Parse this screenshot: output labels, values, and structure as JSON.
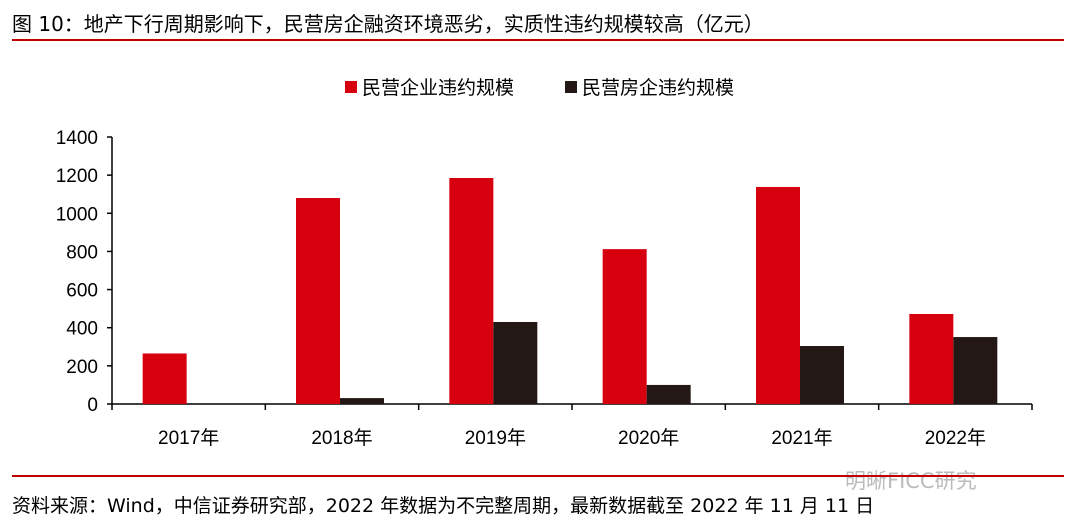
{
  "title": "图 10：地产下行周期影响下，民营房企融资环境恶劣，实质性违约规模较高（亿元）",
  "source": "资料来源：Wind，中信证券研究部，2022 年数据为不完整周期，最新数据截至 2022 年 11 月 11 日",
  "watermark": "明晰FICC研究",
  "colors": {
    "accent": "#c00000",
    "series1": "#d7000f",
    "series2": "#231815"
  },
  "chart_data": {
    "type": "bar",
    "categories": [
      "2017年",
      "2018年",
      "2019年",
      "2020年",
      "2021年",
      "2022年"
    ],
    "series": [
      {
        "name": "民营企业违约规模",
        "values": [
          265,
          1080,
          1185,
          812,
          1138,
          472
        ],
        "color": "#d7000f"
      },
      {
        "name": "民营房企违约规模",
        "values": [
          0,
          31,
          430,
          100,
          304,
          351
        ],
        "color": "#231815"
      }
    ],
    "ylim": [
      0,
      1400
    ],
    "yticks": [
      "0",
      "200",
      "400",
      "600",
      "800",
      "1000",
      "1200",
      "1400"
    ],
    "grid": false,
    "legend": "top-center"
  }
}
